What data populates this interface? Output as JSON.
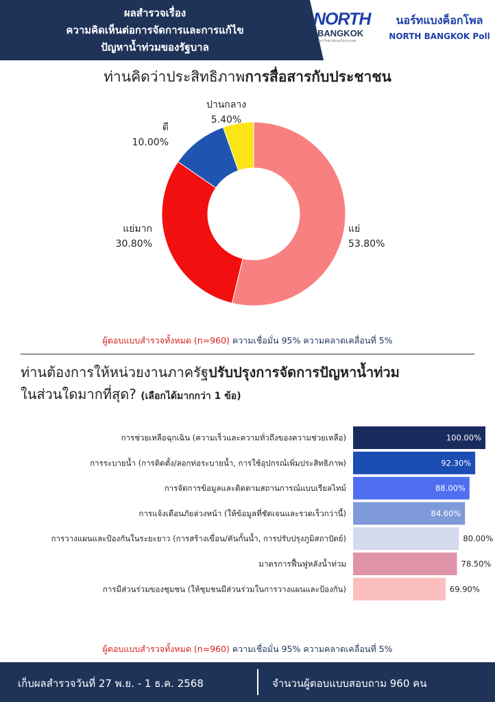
{
  "header": {
    "line1": "ผลสำรวจเรื่อง",
    "line2": "ความคิดเห็นต่อการจัดการและการแก้ไข",
    "line3": "ปัญหาน้ำท่วมของรัฐบาล"
  },
  "logo": {
    "north": "NORTH",
    "bangkok": "BANGKOK",
    "tagline": "มหาวิทยาลัยนอร์ทกรุงเทพ"
  },
  "poll": {
    "thai": "นอร์ทแบงค็อกโพล",
    "english": "NORTH BANGKOK Poll"
  },
  "question1": {
    "prefix": "ท่านคิดว่าประสิทธิภาพ",
    "emphasis": "การสื่อสารกับประชาชน"
  },
  "note1": {
    "red": "ผู้ตอบแบบสำรวจทั้งหมด (n=960)",
    "blue": "ความเชื่อมั่น 95% ความคลาดเคลื่อนที่ 5%"
  },
  "question2": {
    "prefix": "ท่านต้องการให้หน่วยงานภาครัฐ",
    "emphasis": "ปรับปรุงการจัดการปัญหาน้ำท่วม",
    "line2": "ในส่วนใดมากที่สุด?",
    "note": "(เลือกได้มากกว่า 1 ข้อ)"
  },
  "note2": {
    "red": "ผู้ตอบแบบสำรวจทั้งหมด (n=960)",
    "blue": "ความเชื่อมั่น 95% ความคลาดเคลื่อนที่ 5%"
  },
  "footer": {
    "left": "เก็บผลสำรวจวันที่ 27 พ.ย. - 1 ธ.ค. 2568",
    "right": "จำนวนผู้ตอบแบบสอบถาม 960 คน"
  },
  "chart_data": [
    {
      "type": "pie",
      "title": "ท่านคิดว่าประสิทธิภาพการสื่อสารกับประชาชน",
      "categories": [
        "แย่",
        "แย่มาก",
        "ดี",
        "ปานกลาง"
      ],
      "values": [
        53.8,
        30.8,
        10.0,
        5.4
      ],
      "value_labels": [
        "53.80%",
        "30.80%",
        "10.00%",
        "5.40%"
      ],
      "colors": [
        "#f98080",
        "#f20f0f",
        "#1f55b0",
        "#fbe516"
      ],
      "donut": true
    },
    {
      "type": "bar",
      "orientation": "horizontal",
      "title": "ท่านต้องการให้หน่วยงานภาครัฐปรับปรุงการจัดการปัญหาน้ำท่วมในส่วนใดมากที่สุด?",
      "categories": [
        "การช่วยเหลือฉุกเฉิน (ความเร็วและความทั่วถึงของความช่วยเหลือ)",
        "การระบายน้ำ (การติดตั้ง/ลอกท่อระบายน้ำ, การใช้อุปกรณ์เพิ่มประสิทธิภาพ)",
        "การจัดการข้อมูลและติดตามสถานการณ์แบบเรียลไทม์",
        "การแจ้งเตือนภัยล่วงหน้า (ให้ข้อมูลที่ชัดเจนและรวดเร็วกว่านี้)",
        "การวางแผนและป้องกันในระยะยาว (การสร้างเขื่อน/คันกั้นน้ำ, การปรับปรุงภูมิสถาปัตย์)",
        "มาตรการฟื้นฟูหลังน้ำท่วม",
        "การมีส่วนร่วมของชุมชน (ให้ชุมชนมีส่วนร่วมในการวางแผนและป้องกัน)"
      ],
      "values": [
        100.0,
        92.3,
        88.0,
        84.6,
        80.0,
        78.5,
        69.9
      ],
      "value_labels": [
        "100.00%",
        "92.30%",
        "88.00%",
        "84.60%",
        "80.00%",
        "78.50%",
        "69.90%"
      ],
      "colors": [
        "#1a2b5e",
        "#1c4db4",
        "#4f6ff0",
        "#7f9ad8",
        "#d4dbee",
        "#df94aa",
        "#fbbfbf"
      ],
      "label_inside": [
        true,
        true,
        true,
        true,
        false,
        false,
        false
      ],
      "xlim": [
        0,
        100
      ]
    }
  ]
}
